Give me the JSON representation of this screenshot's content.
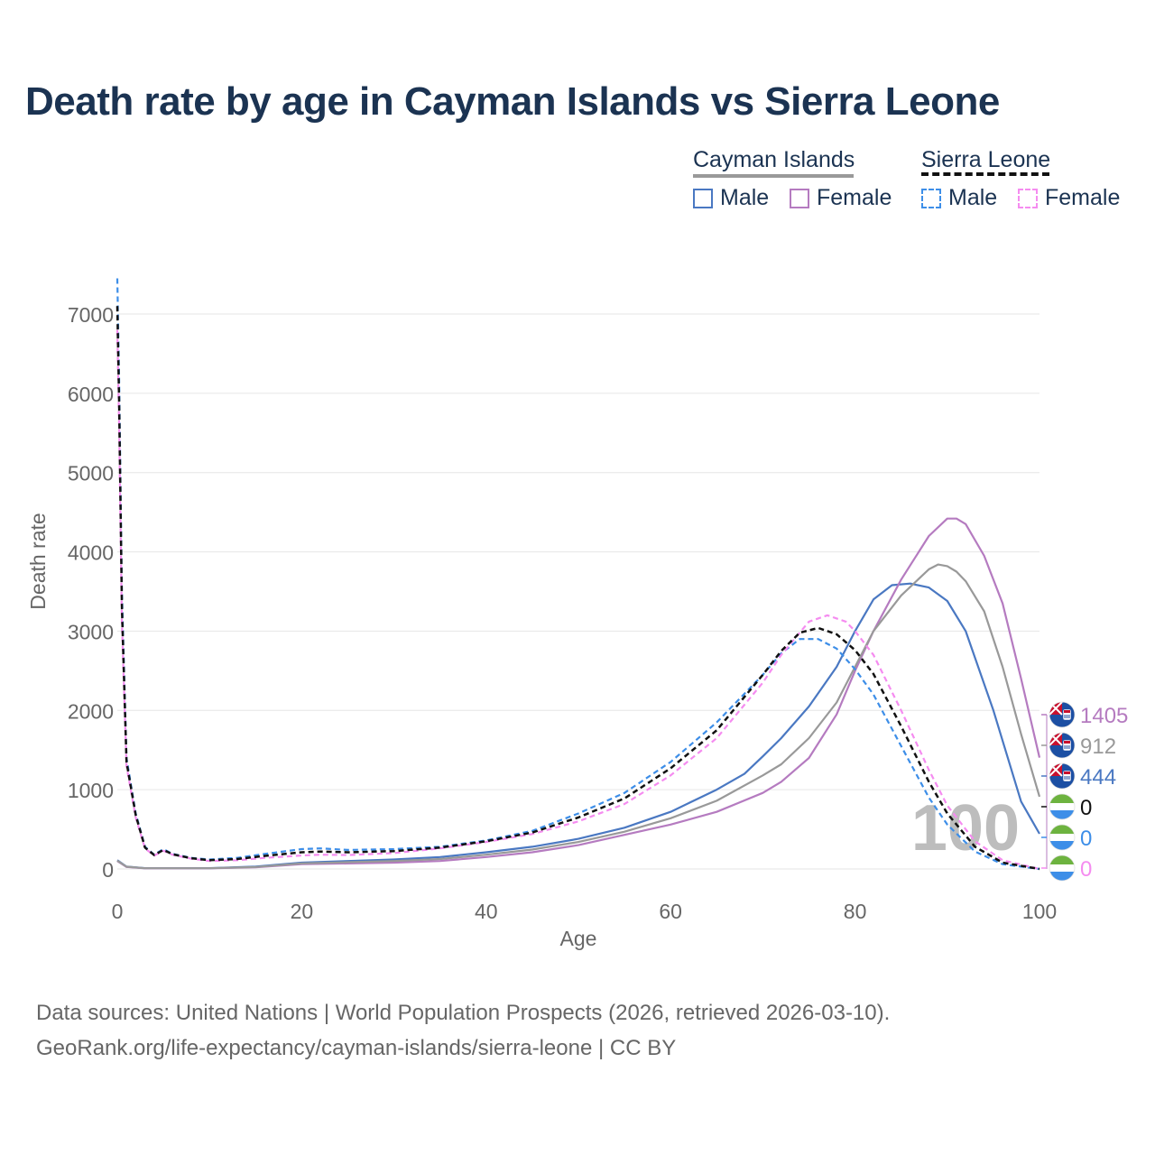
{
  "title": "Death rate by age in Cayman Islands vs Sierra Leone",
  "legend": {
    "country1": "Cayman Islands",
    "country2": "Sierra Leone",
    "male": "Male",
    "female": "Female"
  },
  "watermark_age": "100",
  "footer": {
    "line1": "Data sources: United Nations | World Population Prospects (2026, retrieved 2026-03-10).",
    "line2": "GeoRank.org/life-expectancy/cayman-islands/sierra-leone | CC BY"
  },
  "colors": {
    "title": "#1b3352",
    "cayman_male": "#4a78c2",
    "cayman_female": "#b57bc0",
    "cayman_total": "#999999",
    "sierra_male": "#3d8ee8",
    "sierra_female": "#f58cf0",
    "sierra_total": "#111111"
  },
  "chart_data": {
    "type": "line",
    "title": "Death rate by age in Cayman Islands vs Sierra Leone",
    "xlabel": "Age",
    "ylabel": "Death rate",
    "xlim": [
      0,
      100
    ],
    "ylim": [
      0,
      7400
    ],
    "xticks": [
      0,
      20,
      40,
      60,
      80,
      100
    ],
    "yticks": [
      0,
      1000,
      2000,
      3000,
      4000,
      5000,
      6000,
      7000
    ],
    "series": [
      {
        "key": "cayman_male",
        "name": "Cayman Islands Male",
        "dashed": false,
        "x": [
          0,
          1,
          3,
          5,
          10,
          15,
          20,
          25,
          30,
          35,
          40,
          45,
          50,
          55,
          60,
          65,
          68,
          70,
          72,
          75,
          78,
          80,
          82,
          84,
          86,
          88,
          90,
          92,
          95,
          98,
          100
        ],
        "y": [
          110,
          30,
          10,
          10,
          10,
          30,
          80,
          100,
          120,
          150,
          210,
          280,
          380,
          520,
          720,
          1000,
          1200,
          1420,
          1650,
          2050,
          2550,
          3000,
          3400,
          3580,
          3600,
          3550,
          3380,
          3000,
          2000,
          850,
          444
        ]
      },
      {
        "key": "cayman_female",
        "name": "Cayman Islands Female",
        "dashed": false,
        "x": [
          0,
          1,
          3,
          5,
          10,
          15,
          20,
          25,
          30,
          35,
          40,
          45,
          50,
          55,
          60,
          65,
          70,
          72,
          75,
          78,
          80,
          82,
          85,
          88,
          90,
          91,
          92,
          94,
          96,
          98,
          100
        ],
        "y": [
          100,
          25,
          8,
          8,
          8,
          20,
          60,
          70,
          80,
          100,
          150,
          210,
          300,
          430,
          560,
          720,
          960,
          1100,
          1400,
          1950,
          2500,
          3000,
          3650,
          4200,
          4420,
          4420,
          4350,
          3950,
          3350,
          2400,
          1405
        ]
      },
      {
        "key": "cayman_total",
        "name": "Cayman Islands Total",
        "dashed": false,
        "x": [
          0,
          1,
          3,
          5,
          10,
          15,
          20,
          25,
          30,
          35,
          40,
          45,
          50,
          55,
          60,
          65,
          70,
          72,
          75,
          78,
          80,
          82,
          85,
          88,
          89,
          90,
          91,
          92,
          94,
          96,
          98,
          100
        ],
        "y": [
          105,
          28,
          9,
          9,
          9,
          25,
          70,
          85,
          100,
          125,
          180,
          245,
          340,
          470,
          640,
          860,
          1180,
          1320,
          1650,
          2100,
          2550,
          3000,
          3450,
          3780,
          3840,
          3820,
          3750,
          3630,
          3250,
          2550,
          1700,
          912
        ]
      },
      {
        "key": "sierra_male",
        "name": "Sierra Leone Male",
        "dashed": true,
        "x": [
          0,
          0.2,
          0.5,
          1,
          2,
          3,
          4,
          5,
          6,
          8,
          10,
          13,
          16,
          20,
          22,
          25,
          30,
          35,
          40,
          45,
          50,
          55,
          60,
          65,
          70,
          72,
          74,
          76,
          78,
          80,
          82,
          85,
          88,
          90,
          93,
          96,
          100
        ],
        "y": [
          7450,
          6200,
          3500,
          1400,
          700,
          280,
          180,
          250,
          190,
          140,
          120,
          140,
          190,
          250,
          260,
          240,
          250,
          280,
          360,
          480,
          700,
          960,
          1350,
          1850,
          2450,
          2720,
          2900,
          2900,
          2780,
          2520,
          2200,
          1550,
          900,
          560,
          220,
          60,
          0
        ]
      },
      {
        "key": "sierra_female",
        "name": "Sierra Leone Female",
        "dashed": true,
        "x": [
          0,
          0.2,
          0.5,
          1,
          2,
          3,
          4,
          5,
          6,
          8,
          10,
          13,
          16,
          20,
          22,
          25,
          30,
          35,
          40,
          45,
          50,
          55,
          60,
          65,
          70,
          72,
          75,
          77,
          79,
          80,
          82,
          85,
          88,
          90,
          93,
          96,
          100
        ],
        "y": [
          6800,
          5600,
          3100,
          1300,
          650,
          260,
          170,
          230,
          180,
          130,
          100,
          110,
          140,
          170,
          180,
          175,
          200,
          260,
          340,
          440,
          600,
          820,
          1180,
          1650,
          2350,
          2700,
          3120,
          3200,
          3120,
          3000,
          2700,
          2000,
          1250,
          800,
          350,
          110,
          0
        ]
      },
      {
        "key": "sierra_total",
        "name": "Sierra Leone Total",
        "dashed": true,
        "x": [
          0,
          0.2,
          0.5,
          1,
          2,
          3,
          4,
          5,
          6,
          8,
          10,
          13,
          16,
          20,
          22,
          25,
          30,
          35,
          40,
          45,
          50,
          55,
          60,
          65,
          70,
          72,
          74,
          76,
          78,
          80,
          82,
          85,
          88,
          90,
          93,
          96,
          100
        ],
        "y": [
          7100,
          5900,
          3300,
          1350,
          680,
          270,
          175,
          240,
          185,
          135,
          110,
          125,
          165,
          210,
          220,
          210,
          225,
          270,
          350,
          460,
          650,
          890,
          1270,
          1750,
          2450,
          2750,
          2980,
          3040,
          2960,
          2760,
          2460,
          1800,
          1100,
          700,
          280,
          80,
          0
        ]
      }
    ],
    "end_labels": [
      {
        "value": "1405",
        "color": "#b57bc0",
        "flag": "cayman"
      },
      {
        "value": "912",
        "color": "#999999",
        "flag": "cayman"
      },
      {
        "value": "444",
        "color": "#4a78c2",
        "flag": "cayman"
      },
      {
        "value": "0",
        "color": "#111111",
        "flag": "sierra"
      },
      {
        "value": "0",
        "color": "#3d8ee8",
        "flag": "sierra"
      },
      {
        "value": "0",
        "color": "#f58cf0",
        "flag": "sierra"
      }
    ]
  }
}
